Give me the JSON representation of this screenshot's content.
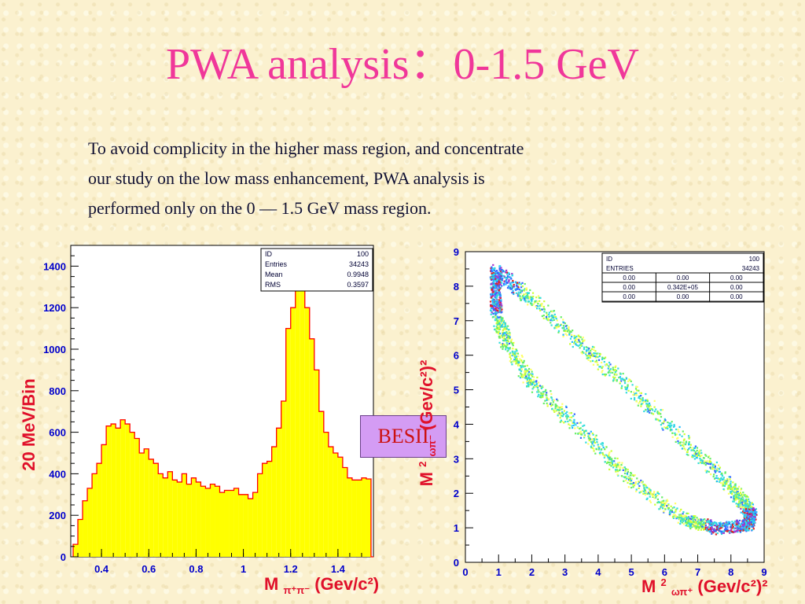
{
  "title": "PWA analysis：0-1.5 GeV",
  "description_lines": [
    "To avoid complicity in the higher mass region, and concentrate",
    "our study on the low mass enhancement, PWA analysis is",
    "performed only on the 0 — 1.5 GeV mass region."
  ],
  "badge": "BESII",
  "colors": {
    "title": "#f0379a",
    "axis_label": "#e0102a",
    "hist_fill": "#ffff00",
    "hist_line": "#ff0000",
    "axis": "#0000cc",
    "badge_bg": "#d49cf4"
  },
  "chart_data": [
    {
      "type": "bar",
      "ylabel": "20 MeV/Bin",
      "xlabel": {
        "base": "M",
        "sub": "π⁺π⁻",
        "unit": "(Gev/c²)"
      },
      "xlim": [
        0.27,
        1.55
      ],
      "ylim": [
        0,
        1500
      ],
      "x_ticks": [
        "0.4",
        "0.6",
        "0.8",
        "1",
        "1.2",
        "1.4"
      ],
      "y_ticks": [
        "0",
        "200",
        "400",
        "600",
        "800",
        "1000",
        "1200",
        "1400"
      ],
      "bin_width": 0.02,
      "bin_start": 0.28,
      "values": [
        60,
        180,
        270,
        330,
        400,
        450,
        540,
        630,
        640,
        620,
        660,
        640,
        600,
        570,
        500,
        520,
        470,
        450,
        400,
        380,
        410,
        370,
        360,
        400,
        350,
        380,
        360,
        340,
        330,
        350,
        340,
        310,
        320,
        320,
        330,
        300,
        300,
        280,
        310,
        400,
        450,
        460,
        530,
        620,
        750,
        1100,
        1200,
        1350,
        1300,
        1200,
        1050,
        900,
        700,
        600,
        530,
        500,
        480,
        430,
        380,
        370,
        370,
        380,
        375,
        0
      ],
      "stats": [
        {
          "label": "ID",
          "value": "100"
        },
        {
          "label": "Entries",
          "value": "34243"
        },
        {
          "label": "Mean",
          "value": "0.9948"
        },
        {
          "label": "RMS",
          "value": "0.3597"
        }
      ]
    },
    {
      "type": "heatmap",
      "ylabel": {
        "base": "M",
        "sup": "2",
        "sub": "ωπ⁻",
        "unit": "(Gev/c²)²"
      },
      "xlabel": {
        "base": "M",
        "sup": "2",
        "sub": "ωπ⁺",
        "unit": "(Gev/c²)²"
      },
      "xlim": [
        0,
        9
      ],
      "ylim": [
        0,
        9
      ],
      "x_ticks": [
        "0",
        "1",
        "2",
        "3",
        "4",
        "5",
        "6",
        "7",
        "8",
        "9"
      ],
      "y_ticks": [
        "0",
        "1",
        "2",
        "3",
        "4",
        "5",
        "6",
        "7",
        "8",
        "9"
      ],
      "outer_boundary": [
        [
          0.9,
          8.5
        ],
        [
          2.0,
          7.6
        ],
        [
          3.5,
          6.3
        ],
        [
          5.0,
          5.0
        ],
        [
          6.5,
          3.6
        ],
        [
          7.8,
          2.4
        ],
        [
          8.3,
          1.8
        ],
        [
          8.6,
          1.4
        ],
        [
          8.5,
          1.1
        ],
        [
          7.5,
          1.0
        ],
        [
          6.5,
          1.3
        ]
      ],
      "inner_boundary": [
        [
          6.5,
          1.3
        ],
        [
          5.0,
          2.4
        ],
        [
          3.5,
          3.8
        ],
        [
          2.0,
          5.2
        ],
        [
          1.2,
          6.4
        ],
        [
          0.9,
          7.3
        ],
        [
          0.9,
          8.5
        ]
      ],
      "stats_header": {
        "label": "ID",
        "value": "100"
      },
      "stats_entries": {
        "label": "ENTRIES",
        "value": "34243"
      },
      "stats_grid": [
        [
          "0.00",
          "0.00",
          "0.00"
        ],
        [
          "0.00",
          "0.342E+05",
          "0.00"
        ],
        [
          "0.00",
          "0.00",
          "0.00"
        ]
      ]
    }
  ]
}
